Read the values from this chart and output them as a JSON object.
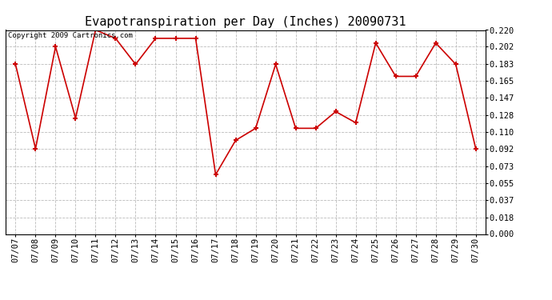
{
  "title": "Evapotranspiration per Day (Inches) 20090731",
  "copyright_text": "Copyright 2009 Cartronics.com",
  "dates": [
    "07/07",
    "07/08",
    "07/09",
    "07/10",
    "07/11",
    "07/12",
    "07/13",
    "07/14",
    "07/15",
    "07/16",
    "07/17",
    "07/18",
    "07/19",
    "07/20",
    "07/21",
    "07/22",
    "07/23",
    "07/24",
    "07/25",
    "07/26",
    "07/27",
    "07/28",
    "07/29",
    "07/30"
  ],
  "values": [
    0.183,
    0.092,
    0.202,
    0.125,
    0.22,
    0.211,
    0.183,
    0.211,
    0.211,
    0.211,
    0.064,
    0.101,
    0.114,
    0.183,
    0.114,
    0.114,
    0.132,
    0.12,
    0.206,
    0.17,
    0.17,
    0.206,
    0.183,
    0.092
  ],
  "line_color": "#cc0000",
  "marker": "+",
  "marker_size": 5,
  "marker_linewidth": 1.5,
  "ylim": [
    0.0,
    0.22
  ],
  "yticks": [
    0.0,
    0.018,
    0.037,
    0.055,
    0.073,
    0.092,
    0.11,
    0.128,
    0.147,
    0.165,
    0.183,
    0.202,
    0.22
  ],
  "background_color": "#ffffff",
  "grid_color": "#bbbbbb",
  "title_fontsize": 11,
  "tick_fontsize": 7.5,
  "copyright_fontsize": 6.5
}
